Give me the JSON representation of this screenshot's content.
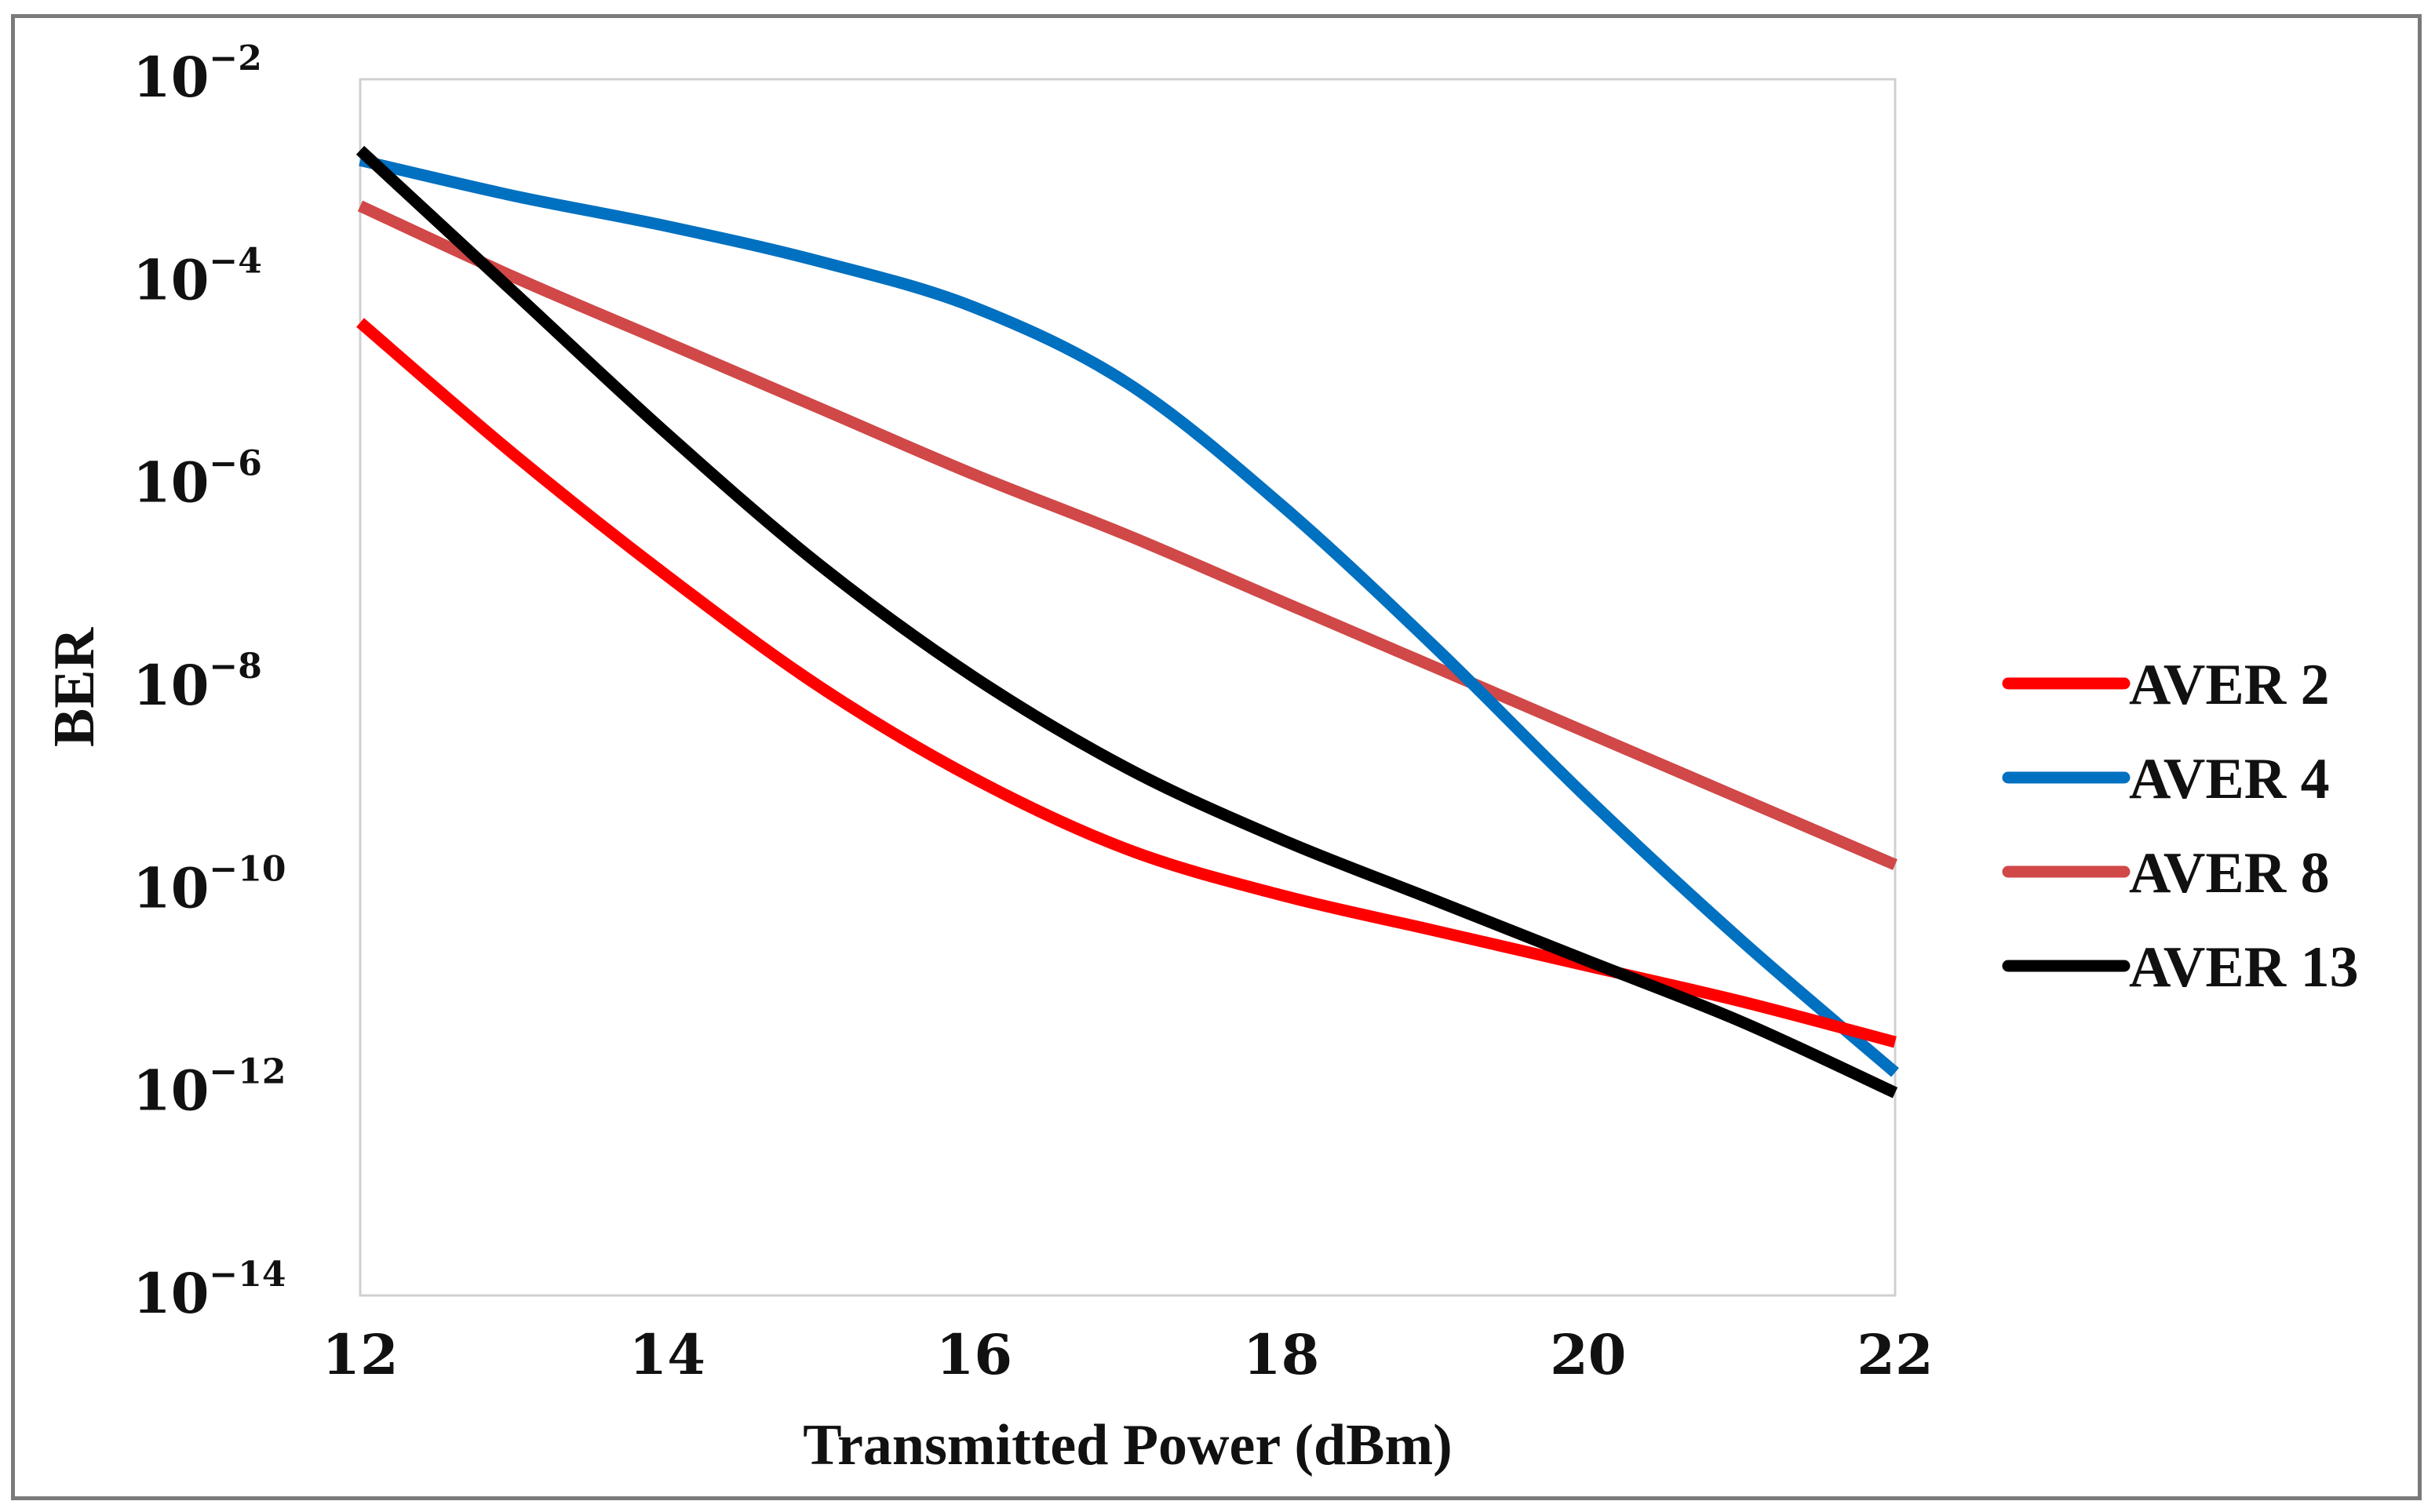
{
  "chart_data": {
    "type": "line",
    "title": "",
    "xlabel": "Transmitted Power (dBm)",
    "ylabel": "BER",
    "xlim": [
      12,
      22
    ],
    "ylim_log10": [
      -14,
      -2
    ],
    "x_ticks": [
      "12",
      "14",
      "16",
      "18",
      "20",
      "22"
    ],
    "y_ticks": [
      {
        "base": "10",
        "exp": "−2"
      },
      {
        "base": "10",
        "exp": "−4"
      },
      {
        "base": "10",
        "exp": "−6"
      },
      {
        "base": "10",
        "exp": "−8"
      },
      {
        "base": "10",
        "exp": "−10"
      },
      {
        "base": "10",
        "exp": "−12"
      },
      {
        "base": "10",
        "exp": "−14"
      }
    ],
    "y_scale": "log",
    "grid": false,
    "legend_position": "right",
    "x": [
      12,
      13,
      14,
      15,
      16,
      17,
      18,
      19,
      20,
      21,
      22
    ],
    "series": [
      {
        "name": "AVER 2",
        "color": "#ff0000",
        "log10_values": [
          -4.4,
          -5.7,
          -6.9,
          -8.0,
          -8.9,
          -9.6,
          -10.05,
          -10.4,
          -10.75,
          -11.1,
          -11.5
        ]
      },
      {
        "name": "AVER 4",
        "color": "#0070c0",
        "log10_values": [
          -2.8,
          -3.15,
          -3.45,
          -3.8,
          -4.25,
          -5.0,
          -6.2,
          -7.6,
          -9.1,
          -10.5,
          -11.8
        ]
      },
      {
        "name": "AVER 8",
        "color": "#d04848",
        "log10_values": [
          -3.25,
          -3.95,
          -4.6,
          -5.25,
          -5.9,
          -6.5,
          -7.15,
          -7.8,
          -8.45,
          -9.1,
          -9.75
        ]
      },
      {
        "name": "AVER 13",
        "color": "#000000",
        "log10_values": [
          -2.7,
          -4.1,
          -5.5,
          -6.8,
          -7.9,
          -8.8,
          -9.5,
          -10.1,
          -10.7,
          -11.3,
          -12.0
        ]
      }
    ]
  }
}
